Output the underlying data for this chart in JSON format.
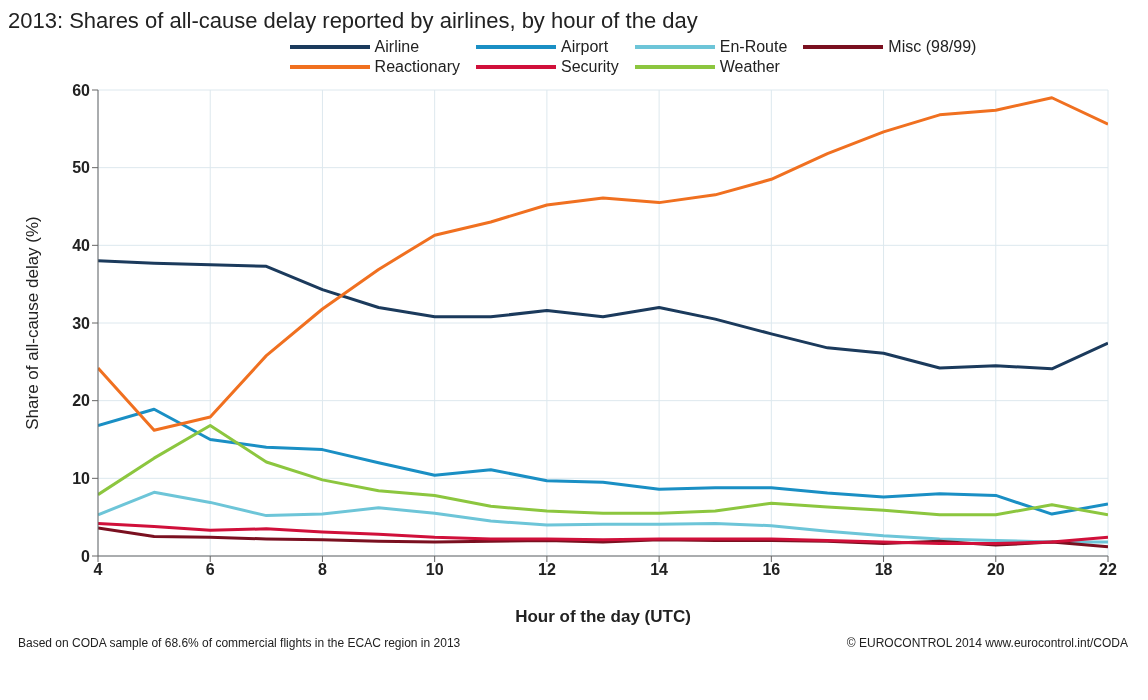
{
  "chart_data": {
    "type": "line",
    "title": "2013: Shares of all-cause delay reported by airlines, by hour of the day",
    "xlabel": "Hour of the day (UTC)",
    "ylabel": "Share of all-cause delay (%)",
    "x": [
      4,
      5,
      6,
      7,
      8,
      9,
      10,
      11,
      12,
      13,
      14,
      15,
      16,
      17,
      18,
      19,
      20,
      21,
      22
    ],
    "xlim": [
      4,
      22
    ],
    "xticks": [
      4,
      6,
      8,
      10,
      12,
      14,
      16,
      18,
      20,
      22
    ],
    "ylim": [
      0,
      60
    ],
    "yticks": [
      0,
      10,
      20,
      30,
      40,
      50,
      60
    ],
    "grid": true,
    "legend": "top",
    "marker": "none",
    "line_style": "solid",
    "series": [
      {
        "name": "Airline",
        "color": "#1b3a5c",
        "values": [
          38,
          37.7,
          37.5,
          37.3,
          34.3,
          32,
          30.8,
          30.8,
          31.6,
          30.8,
          32,
          30.5,
          28.6,
          26.8,
          26.1,
          24.2,
          24.5,
          24.1,
          27.4
        ]
      },
      {
        "name": "Airport",
        "color": "#1a8fc4",
        "values": [
          16.8,
          18.9,
          15,
          14,
          13.7,
          12,
          10.4,
          11.1,
          9.7,
          9.5,
          8.6,
          8.8,
          8.8,
          8.1,
          7.6,
          8,
          7.8,
          5.4,
          6.7
        ]
      },
      {
        "name": "En-Route",
        "color": "#6dc5d8",
        "values": [
          5.3,
          8.2,
          6.9,
          5.2,
          5.4,
          6.2,
          5.5,
          4.5,
          4,
          4.1,
          4.1,
          4.2,
          3.9,
          3.2,
          2.6,
          2.2,
          2,
          1.8,
          1.8
        ]
      },
      {
        "name": "Misc (98/99)",
        "color": "#7a1020",
        "values": [
          3.6,
          2.5,
          2.4,
          2.2,
          2.1,
          1.9,
          1.8,
          1.9,
          2,
          1.8,
          2.1,
          2,
          2,
          1.9,
          1.6,
          1.9,
          1.4,
          1.8,
          1.2
        ]
      },
      {
        "name": "Reactionary",
        "color": "#f07020",
        "values": [
          24.2,
          16.2,
          17.9,
          25.8,
          31.8,
          36.9,
          41.3,
          43,
          45.2,
          46.1,
          45.5,
          46.5,
          48.5,
          51.8,
          54.6,
          56.8,
          57.4,
          59,
          55.6
        ]
      },
      {
        "name": "Security",
        "color": "#d0103a",
        "values": [
          4.2,
          3.8,
          3.3,
          3.5,
          3.1,
          2.8,
          2.4,
          2.2,
          2.2,
          2.1,
          2.2,
          2.2,
          2.2,
          2,
          1.8,
          1.6,
          1.6,
          1.8,
          2.4
        ]
      },
      {
        "name": "Weather",
        "color": "#8cc63f",
        "values": [
          7.9,
          12.6,
          16.8,
          12.1,
          9.8,
          8.4,
          7.8,
          6.4,
          5.8,
          5.5,
          5.5,
          5.8,
          6.8,
          6.3,
          5.9,
          5.3,
          5.3,
          6.6,
          5.3
        ]
      }
    ],
    "annotations": [
      "Based on CODA sample of 68.6% of commercial flights in the ECAC region in 2013",
      "© EUROCONTROL 2014 www.eurocontrol.int/CODA"
    ]
  }
}
